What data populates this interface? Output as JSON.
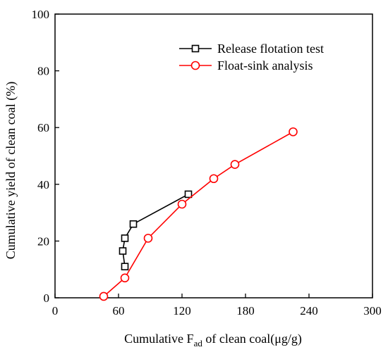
{
  "chart_data": {
    "type": "line",
    "title": "",
    "xlabel": {
      "main": "Cumulative F",
      "subscript": "ad",
      "rest": " of clean coal(μg/g)"
    },
    "ylabel": "Cumulative yield of clean coal (%)",
    "xlim": [
      0,
      300
    ],
    "ylim": [
      0,
      100
    ],
    "xticks": [
      0,
      60,
      120,
      180,
      240,
      300
    ],
    "yticks": [
      0,
      20,
      40,
      60,
      80,
      100
    ],
    "xtick_labels": [
      "0",
      "60",
      "120",
      "180",
      "240",
      "300"
    ],
    "ytick_labels": [
      "0",
      "20",
      "40",
      "60",
      "80",
      "100"
    ],
    "grid": false,
    "legend_position": "top-right",
    "series": [
      {
        "name": "Release flotation test",
        "color": "#000000",
        "marker": "square",
        "x": [
          66,
          64,
          66,
          74,
          126
        ],
        "y": [
          11,
          16.5,
          21,
          26,
          36.5
        ]
      },
      {
        "name": "Float-sink analysis",
        "color": "#ff0000",
        "marker": "circle",
        "x": [
          46,
          66,
          88,
          120,
          150,
          170,
          225
        ],
        "y": [
          0.5,
          7,
          21,
          33,
          42,
          47,
          58.5
        ]
      }
    ]
  }
}
